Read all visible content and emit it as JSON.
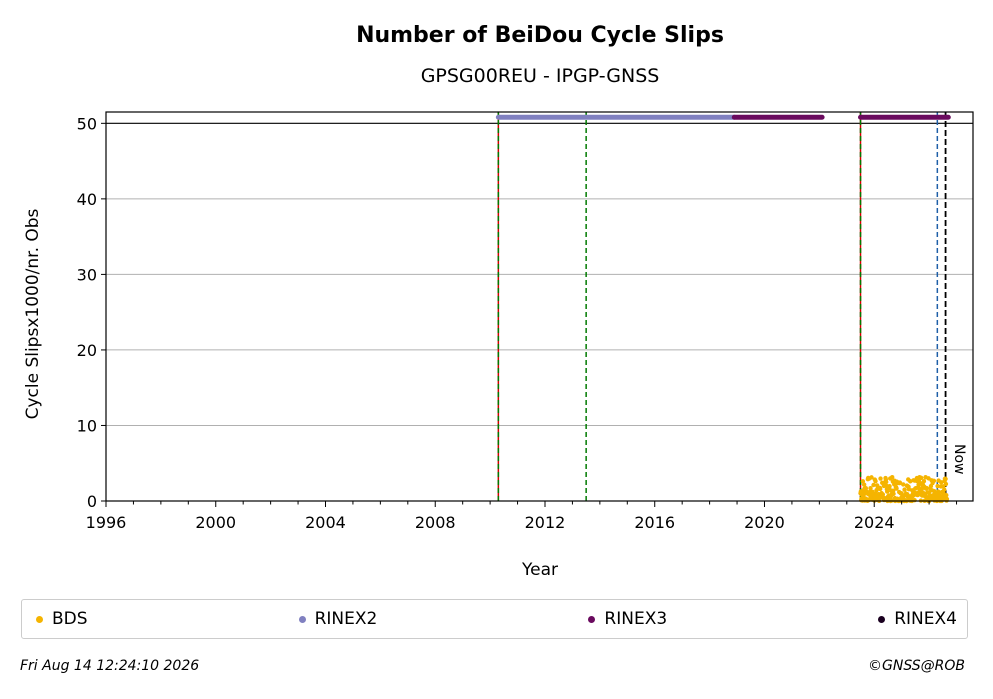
{
  "chart_data": {
    "type": "scatter",
    "title": "Number of BeiDou Cycle Slips",
    "subtitle": "GPSG00REU - IPGP-GNSS",
    "xlabel": "Year",
    "ylabel": "Cycle Slipsx1000/nr. Obs",
    "xlim": [
      1996,
      2027.6
    ],
    "ylim": [
      0,
      51.5
    ],
    "xticks": [
      1996,
      2000,
      2004,
      2008,
      2012,
      2016,
      2020,
      2024
    ],
    "yticks": [
      0,
      10,
      20,
      30,
      40,
      50
    ],
    "grid": "horizontal",
    "cap_line": 50,
    "now_label": "Now",
    "series": [
      {
        "name": "BDS",
        "color": "#f5b400",
        "x_range": [
          2023.5,
          2026.65
        ],
        "y_range": [
          0,
          3.2
        ],
        "marker": "points"
      },
      {
        "name": "RINEX2",
        "color": "#8080c0",
        "x_range": [
          2010.3,
          2018.9
        ],
        "y": 50.8,
        "marker": "band"
      },
      {
        "name": "RINEX3",
        "color": "#6a0a5e",
        "segments": [
          [
            2018.9,
            2022.1
          ],
          [
            2023.5,
            2026.7
          ]
        ],
        "y": 50.8,
        "marker": "band"
      },
      {
        "name": "RINEX4",
        "color": "#1a0020",
        "segments": [],
        "y": 50.8,
        "marker": "band"
      }
    ],
    "vertical_lines": [
      {
        "x": 2010.3,
        "style": "red-green-dashed"
      },
      {
        "x": 2013.5,
        "style": "green-dashed"
      },
      {
        "x": 2023.5,
        "style": "red-green-dashed"
      },
      {
        "x": 2026.3,
        "style": "blue-dashed"
      },
      {
        "x": 2026.6,
        "style": "black-dashed"
      }
    ],
    "legend_position": "bottom"
  },
  "footer": {
    "timestamp": "Fri Aug 14 12:24:10 2026",
    "credit": "©GNSS@ROB"
  }
}
